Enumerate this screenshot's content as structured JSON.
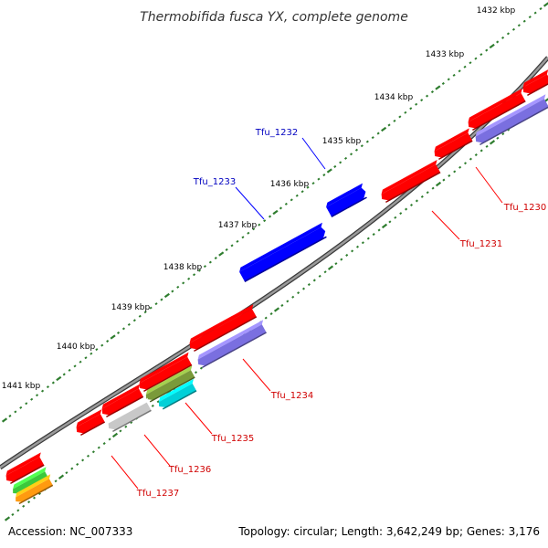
{
  "title": "Thermobifida fusca YX, complete genome",
  "footer": {
    "accession": "Accession: NC_007333",
    "summary": "Topology: circular; Length: 3,642,249 bp; Genes: 3,176"
  },
  "ticks": [
    "1432 kbp",
    "1433 kbp",
    "1434 kbp",
    "1435 kbp",
    "1436 kbp",
    "1437 kbp",
    "1438 kbp",
    "1439 kbp",
    "1440 kbp",
    "1441 kbp"
  ],
  "genes": [
    {
      "name": "Tfu_1230",
      "color": "#d00000",
      "strand": "reverse"
    },
    {
      "name": "Tfu_1231",
      "color": "#d00000",
      "strand": "reverse"
    },
    {
      "name": "Tfu_1232",
      "color": "#0000c0",
      "strand": "forward"
    },
    {
      "name": "Tfu_1233",
      "color": "#0000c0",
      "strand": "forward"
    },
    {
      "name": "Tfu_1234",
      "color": "#d00000",
      "strand": "reverse"
    },
    {
      "name": "Tfu_1235",
      "color": "#d00000",
      "strand": "reverse"
    },
    {
      "name": "Tfu_1236",
      "color": "#d00000",
      "strand": "reverse"
    },
    {
      "name": "Tfu_1237",
      "color": "#d00000",
      "strand": "reverse"
    }
  ],
  "colors": {
    "backbone": "#808080",
    "tick_mark": "#2e7d2e",
    "cds_red": "#ff0000",
    "cds_blue": "#0000ff",
    "cds_purple": "#7a6fe0",
    "cds_gray": "#c8c8c8",
    "cds_cyan": "#00d0d8",
    "cds_green": "#3cc83c",
    "cds_olive": "#7a9a3a",
    "cds_orange": "#ff9a10"
  }
}
